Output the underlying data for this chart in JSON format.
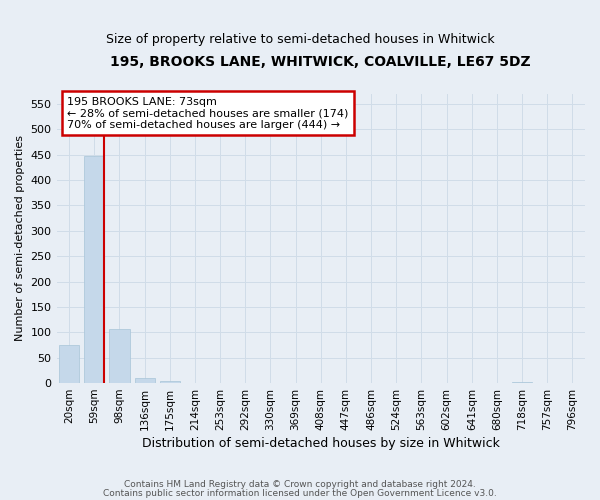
{
  "title": "195, BROOKS LANE, WHITWICK, COALVILLE, LE67 5DZ",
  "subtitle": "Size of property relative to semi-detached houses in Whitwick",
  "xlabel": "Distribution of semi-detached houses by size in Whitwick",
  "ylabel": "Number of semi-detached properties",
  "bar_labels": [
    "20sqm",
    "59sqm",
    "98sqm",
    "136sqm",
    "175sqm",
    "214sqm",
    "253sqm",
    "292sqm",
    "330sqm",
    "369sqm",
    "408sqm",
    "447sqm",
    "486sqm",
    "524sqm",
    "563sqm",
    "602sqm",
    "641sqm",
    "680sqm",
    "718sqm",
    "757sqm",
    "796sqm"
  ],
  "bar_values": [
    75,
    447,
    106,
    10,
    5,
    0,
    0,
    0,
    0,
    0,
    0,
    0,
    0,
    0,
    0,
    0,
    0,
    0,
    3,
    0,
    0
  ],
  "bar_color": "#c5d8ea",
  "bar_edge_color": "#a8c4d8",
  "grid_color": "#d0dce8",
  "background_color": "#e8eef5",
  "red_line_x": 1.4,
  "red_line_color": "#cc0000",
  "annotation_title": "195 BROOKS LANE: 73sqm",
  "annotation_line1": "← 28% of semi-detached houses are smaller (174)",
  "annotation_line2": "70% of semi-detached houses are larger (444) →",
  "annotation_box_color": "#ffffff",
  "annotation_box_edge": "#cc0000",
  "ylim": [
    0,
    570
  ],
  "yticks": [
    0,
    50,
    100,
    150,
    200,
    250,
    300,
    350,
    400,
    450,
    500,
    550
  ],
  "footnote1": "Contains HM Land Registry data © Crown copyright and database right 2024.",
  "footnote2": "Contains public sector information licensed under the Open Government Licence v3.0."
}
